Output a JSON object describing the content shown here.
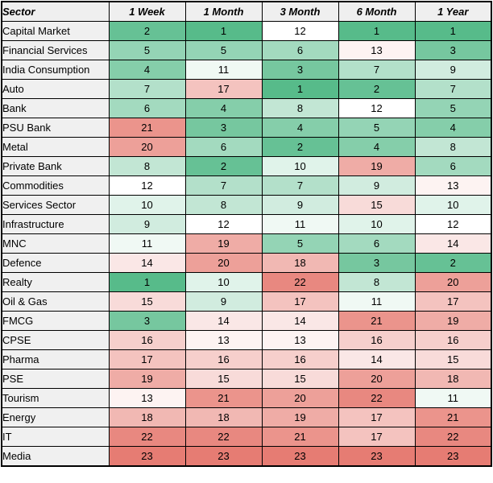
{
  "chart_data": {
    "type": "heatmap",
    "title": "",
    "corner_label": "Sector",
    "columns": [
      "1 Week",
      "1 Month",
      "3 Month",
      "6 Month",
      "1 Year"
    ],
    "rows": [
      {
        "sector": "Capital Market",
        "values": [
          2,
          1,
          12,
          1,
          1
        ]
      },
      {
        "sector": "Financial Services",
        "values": [
          5,
          5,
          6,
          13,
          3
        ]
      },
      {
        "sector": "India Consumption",
        "values": [
          4,
          11,
          3,
          7,
          9
        ]
      },
      {
        "sector": "Auto",
        "values": [
          7,
          17,
          1,
          2,
          7
        ]
      },
      {
        "sector": "Bank",
        "values": [
          6,
          4,
          8,
          12,
          5
        ]
      },
      {
        "sector": "PSU Bank",
        "values": [
          21,
          3,
          4,
          5,
          4
        ]
      },
      {
        "sector": "Metal",
        "values": [
          20,
          6,
          2,
          4,
          8
        ]
      },
      {
        "sector": "Private Bank",
        "values": [
          8,
          2,
          10,
          19,
          6
        ]
      },
      {
        "sector": "Commodities",
        "values": [
          12,
          7,
          7,
          9,
          13
        ]
      },
      {
        "sector": "Services Sector",
        "values": [
          10,
          8,
          9,
          15,
          10
        ]
      },
      {
        "sector": "Infrastructure",
        "values": [
          9,
          12,
          11,
          10,
          12
        ]
      },
      {
        "sector": "MNC",
        "values": [
          11,
          19,
          5,
          6,
          14
        ]
      },
      {
        "sector": "Defence",
        "values": [
          14,
          20,
          18,
          3,
          2
        ]
      },
      {
        "sector": "Realty",
        "values": [
          1,
          10,
          22,
          8,
          20
        ]
      },
      {
        "sector": "Oil & Gas",
        "values": [
          15,
          9,
          17,
          11,
          17
        ]
      },
      {
        "sector": "FMCG",
        "values": [
          3,
          14,
          14,
          21,
          19
        ]
      },
      {
        "sector": "CPSE",
        "values": [
          16,
          13,
          13,
          16,
          16
        ]
      },
      {
        "sector": "Pharma",
        "values": [
          17,
          16,
          16,
          14,
          15
        ]
      },
      {
        "sector": "PSE",
        "values": [
          19,
          15,
          15,
          20,
          18
        ]
      },
      {
        "sector": "Tourism",
        "values": [
          13,
          21,
          20,
          22,
          11
        ]
      },
      {
        "sector": "Energy",
        "values": [
          18,
          18,
          19,
          17,
          21
        ]
      },
      {
        "sector": "IT",
        "values": [
          22,
          22,
          21,
          17,
          22
        ]
      },
      {
        "sector": "Media",
        "values": [
          23,
          23,
          23,
          23,
          23
        ]
      }
    ],
    "color_scale": {
      "min": {
        "value": 1,
        "color": "#57BB8A"
      },
      "mid": {
        "value": 12,
        "color": "#FFFFFF"
      },
      "max": {
        "value": 23,
        "color": "#E67C73"
      }
    },
    "legend": "off",
    "grid": "on"
  },
  "colors": {
    "header_bg": "#EFEFEF",
    "label_bg": "#F0F0F0",
    "border": "#000000",
    "text": "#000000"
  }
}
